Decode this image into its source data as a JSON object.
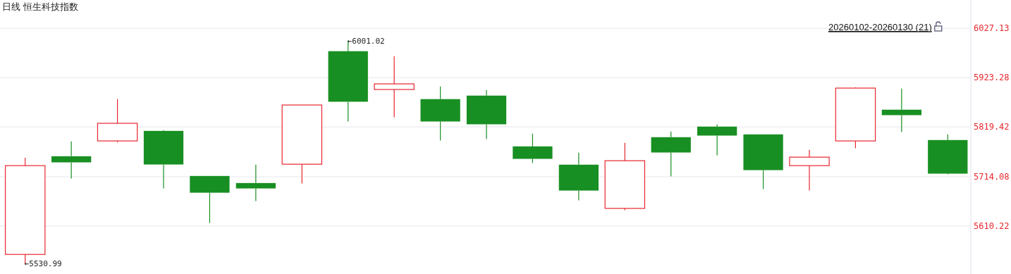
{
  "chart_data": {
    "type": "candlestick",
    "title": "日线  恒生科技指数",
    "categories": [
      null,
      null,
      null,
      null,
      null,
      null,
      null,
      null,
      null,
      null,
      null,
      null,
      null,
      null,
      null,
      null,
      null,
      null,
      null,
      null,
      null
    ],
    "ohlc": [
      [
        5550.3,
        5754.3,
        5530.99,
        5737.6
      ],
      [
        5757.4,
        5788.6,
        5710.3,
        5744.5
      ],
      [
        5789.7,
        5877.9,
        5786.7,
        5826.9
      ],
      [
        5810.9,
        5812.4,
        5689.5,
        5740.0
      ],
      [
        5715.8,
        5715.8,
        5616.6,
        5680.5
      ],
      [
        5700.9,
        5739.6,
        5662.7,
        5689.5
      ],
      [
        5740.6,
        5865.5,
        5699.9,
        5865.5
      ],
      [
        5979.0,
        6001.02,
        5830.7,
        5872.4
      ],
      [
        5898.2,
        5968.6,
        5839.6,
        5910.1
      ],
      [
        5877.9,
        5904.6,
        5790.6,
        5830.7
      ],
      [
        5885.3,
        5897.2,
        5793.5,
        5824.8
      ],
      [
        5778.2,
        5805.0,
        5743.0,
        5751.9
      ],
      [
        5739.6,
        5764.8,
        5664.2,
        5685.0
      ],
      [
        5647.4,
        5785.7,
        5643.4,
        5748.0
      ],
      [
        5797.6,
        5809.5,
        5714.7,
        5765.3
      ],
      [
        5819.9,
        5824.3,
        5759.4,
        5801.0
      ],
      [
        5803.5,
        5803.5,
        5688.0,
        5728.1
      ],
      [
        5737.6,
        5770.8,
        5685.0,
        5755.5
      ],
      [
        5789.7,
        5902.7,
        5774.2,
        5901.2
      ],
      [
        5855.6,
        5900.2,
        5808.4,
        5844.1
      ],
      [
        5791.6,
        5803.5,
        5719.2,
        5720.7
      ]
    ],
    "colors": [
      "#e8262d",
      "#188f22",
      "#e8262d",
      "#188f22",
      "#188f22",
      "#188f22",
      "#e8262d",
      "#188f22",
      "#e8262d",
      "#188f22",
      "#188f22",
      "#188f22",
      "#188f22",
      "#e8262d",
      "#188f22",
      "#188f22",
      "#188f22",
      "#e8262d",
      "#e8262d",
      "#188f22",
      "#188f22"
    ],
    "ylim": [
      5509,
      6087
    ],
    "yticks": [
      5610.22,
      5714.08,
      5819.42,
      5923.28,
      6027.13
    ],
    "grid": "y",
    "annotations": [
      "←6001.02",
      "←5530.99",
      "20260102-20260130 (21)"
    ]
  }
}
